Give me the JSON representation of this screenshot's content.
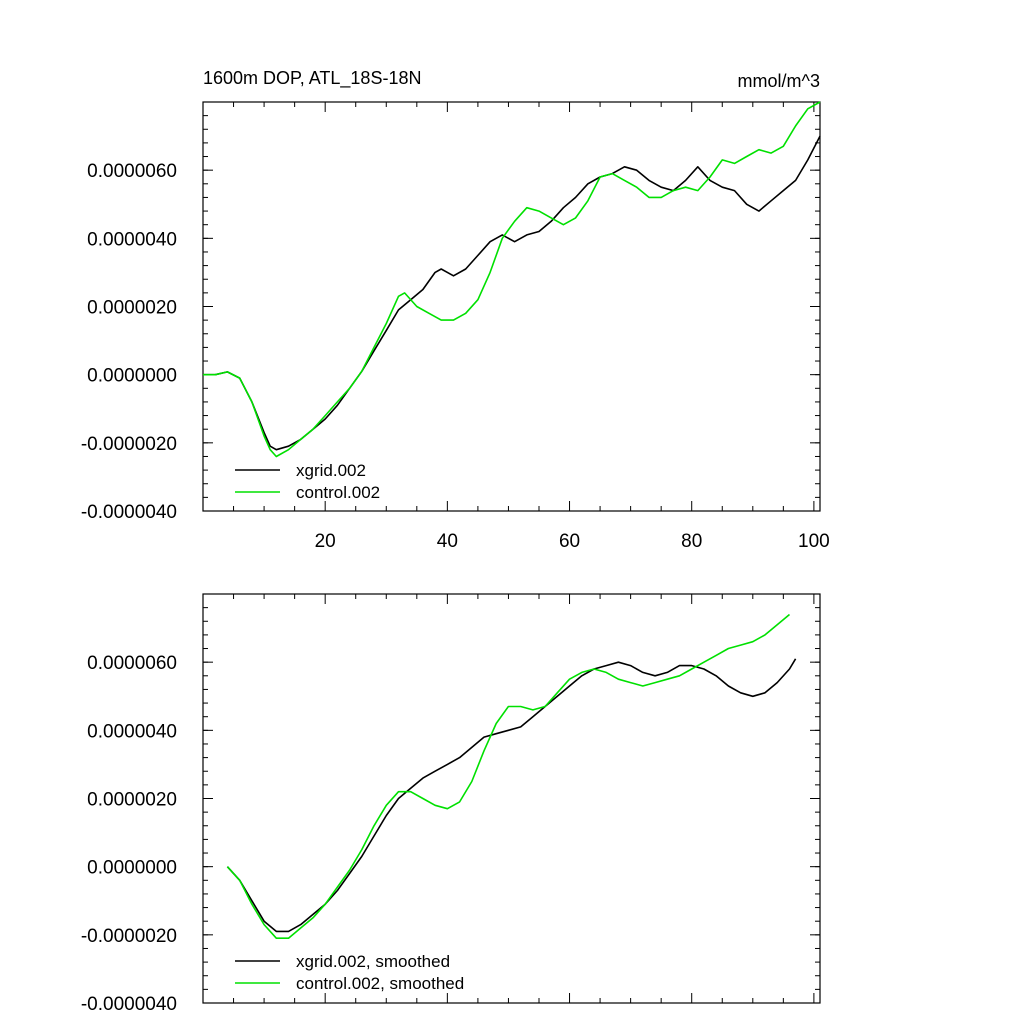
{
  "chart_data": [
    {
      "type": "line",
      "title_left": "1600m DOP, ATL_18S-18N",
      "title_right": "mmol/m^3",
      "xlabel": "",
      "ylabel": "",
      "xlim": [
        0,
        101
      ],
      "ylim": [
        -4e-06,
        8e-06
      ],
      "x_ticks": [
        20,
        40,
        60,
        80,
        100
      ],
      "x_tick_labels": [
        "20",
        "40",
        "60",
        "80",
        "100"
      ],
      "y_ticks": [
        -4e-06,
        -2e-06,
        0.0,
        2e-06,
        4e-06,
        6e-06
      ],
      "y_tick_labels": [
        "-0.0000040",
        "-0.0000020",
        "0.0000000",
        "0.0000020",
        "0.0000040",
        "0.0000060"
      ],
      "legend_position": "bottom-left",
      "series": [
        {
          "name": "xgrid.002",
          "color": "#000000",
          "points": [
            [
              0,
              0
            ],
            [
              2,
              0
            ],
            [
              4,
              8e-08
            ],
            [
              6,
              -1e-07
            ],
            [
              8,
              -8e-07
            ],
            [
              10,
              -1.7e-06
            ],
            [
              11,
              -2.1e-06
            ],
            [
              12,
              -2.2e-06
            ],
            [
              14,
              -2.1e-06
            ],
            [
              16,
              -1.9e-06
            ],
            [
              18,
              -1.6e-06
            ],
            [
              20,
              -1.3e-06
            ],
            [
              22,
              -9e-07
            ],
            [
              24,
              -4e-07
            ],
            [
              26,
              1e-07
            ],
            [
              28,
              7e-07
            ],
            [
              30,
              1.3e-06
            ],
            [
              32,
              1.9e-06
            ],
            [
              34,
              2.2e-06
            ],
            [
              36,
              2.5e-06
            ],
            [
              38,
              3e-06
            ],
            [
              39,
              3.1e-06
            ],
            [
              40,
              3e-06
            ],
            [
              41,
              2.9e-06
            ],
            [
              43,
              3.1e-06
            ],
            [
              45,
              3.5e-06
            ],
            [
              47,
              3.9e-06
            ],
            [
              49,
              4.1e-06
            ],
            [
              51,
              3.9e-06
            ],
            [
              53,
              4.1e-06
            ],
            [
              55,
              4.2e-06
            ],
            [
              57,
              4.5e-06
            ],
            [
              59,
              4.9e-06
            ],
            [
              61,
              5.2e-06
            ],
            [
              63,
              5.6e-06
            ],
            [
              65,
              5.8e-06
            ],
            [
              67,
              5.9e-06
            ],
            [
              69,
              6.1e-06
            ],
            [
              71,
              6e-06
            ],
            [
              73,
              5.7e-06
            ],
            [
              75,
              5.5e-06
            ],
            [
              77,
              5.4e-06
            ],
            [
              79,
              5.7e-06
            ],
            [
              81,
              6.1e-06
            ],
            [
              83,
              5.7e-06
            ],
            [
              85,
              5.5e-06
            ],
            [
              87,
              5.4e-06
            ],
            [
              89,
              5e-06
            ],
            [
              91,
              4.8e-06
            ],
            [
              93,
              5.1e-06
            ],
            [
              95,
              5.4e-06
            ],
            [
              97,
              5.7e-06
            ],
            [
              99,
              6.3e-06
            ],
            [
              101,
              7e-06
            ]
          ]
        },
        {
          "name": "control.002",
          "color": "#00e000",
          "points": [
            [
              0,
              0
            ],
            [
              2,
              0
            ],
            [
              4,
              8e-08
            ],
            [
              6,
              -1e-07
            ],
            [
              8,
              -8e-07
            ],
            [
              10,
              -1.8e-06
            ],
            [
              11,
              -2.2e-06
            ],
            [
              12,
              -2.4e-06
            ],
            [
              14,
              -2.2e-06
            ],
            [
              16,
              -1.9e-06
            ],
            [
              18,
              -1.6e-06
            ],
            [
              20,
              -1.2e-06
            ],
            [
              22,
              -8e-07
            ],
            [
              24,
              -4e-07
            ],
            [
              26,
              1e-07
            ],
            [
              28,
              8e-07
            ],
            [
              30,
              1.5e-06
            ],
            [
              32,
              2.3e-06
            ],
            [
              33,
              2.4e-06
            ],
            [
              35,
              2e-06
            ],
            [
              37,
              1.8e-06
            ],
            [
              39,
              1.6e-06
            ],
            [
              41,
              1.6e-06
            ],
            [
              43,
              1.8e-06
            ],
            [
              45,
              2.2e-06
            ],
            [
              47,
              3e-06
            ],
            [
              49,
              4e-06
            ],
            [
              51,
              4.5e-06
            ],
            [
              53,
              4.9e-06
            ],
            [
              55,
              4.8e-06
            ],
            [
              57,
              4.6e-06
            ],
            [
              59,
              4.4e-06
            ],
            [
              61,
              4.6e-06
            ],
            [
              63,
              5.1e-06
            ],
            [
              65,
              5.8e-06
            ],
            [
              67,
              5.9e-06
            ],
            [
              69,
              5.7e-06
            ],
            [
              71,
              5.5e-06
            ],
            [
              73,
              5.2e-06
            ],
            [
              75,
              5.2e-06
            ],
            [
              77,
              5.4e-06
            ],
            [
              79,
              5.5e-06
            ],
            [
              81,
              5.4e-06
            ],
            [
              83,
              5.8e-06
            ],
            [
              85,
              6.3e-06
            ],
            [
              87,
              6.2e-06
            ],
            [
              89,
              6.4e-06
            ],
            [
              91,
              6.6e-06
            ],
            [
              93,
              6.5e-06
            ],
            [
              95,
              6.7e-06
            ],
            [
              97,
              7.3e-06
            ],
            [
              99,
              7.8e-06
            ],
            [
              101,
              8e-06
            ]
          ]
        }
      ]
    },
    {
      "type": "line",
      "title_left": "",
      "title_right": "",
      "xlabel": "",
      "ylabel": "",
      "xlim": [
        0,
        101
      ],
      "ylim": [
        -4e-06,
        8e-06
      ],
      "x_ticks": [
        20,
        40,
        60,
        80,
        100
      ],
      "x_tick_labels": [],
      "y_ticks": [
        -4e-06,
        -2e-06,
        0.0,
        2e-06,
        4e-06,
        6e-06
      ],
      "y_tick_labels": [
        "-0.0000040",
        "-0.0000020",
        "0.0000000",
        "0.0000020",
        "0.0000040",
        "0.0000060"
      ],
      "legend_position": "bottom-left",
      "series": [
        {
          "name": "xgrid.002, smoothed",
          "color": "#000000",
          "points": [
            [
              4,
              0
            ],
            [
              6,
              -4e-07
            ],
            [
              8,
              -1e-06
            ],
            [
              10,
              -1.6e-06
            ],
            [
              12,
              -1.9e-06
            ],
            [
              14,
              -1.9e-06
            ],
            [
              16,
              -1.7e-06
            ],
            [
              18,
              -1.4e-06
            ],
            [
              20,
              -1.1e-06
            ],
            [
              22,
              -7e-07
            ],
            [
              24,
              -2e-07
            ],
            [
              26,
              3e-07
            ],
            [
              28,
              9e-07
            ],
            [
              30,
              1.5e-06
            ],
            [
              32,
              2e-06
            ],
            [
              34,
              2.3e-06
            ],
            [
              36,
              2.6e-06
            ],
            [
              38,
              2.8e-06
            ],
            [
              40,
              3e-06
            ],
            [
              42,
              3.2e-06
            ],
            [
              44,
              3.5e-06
            ],
            [
              46,
              3.8e-06
            ],
            [
              48,
              3.9e-06
            ],
            [
              50,
              4e-06
            ],
            [
              52,
              4.1e-06
            ],
            [
              54,
              4.4e-06
            ],
            [
              56,
              4.7e-06
            ],
            [
              58,
              5e-06
            ],
            [
              60,
              5.3e-06
            ],
            [
              62,
              5.6e-06
            ],
            [
              64,
              5.8e-06
            ],
            [
              66,
              5.9e-06
            ],
            [
              68,
              6e-06
            ],
            [
              70,
              5.9e-06
            ],
            [
              72,
              5.7e-06
            ],
            [
              74,
              5.6e-06
            ],
            [
              76,
              5.7e-06
            ],
            [
              78,
              5.9e-06
            ],
            [
              80,
              5.9e-06
            ],
            [
              82,
              5.8e-06
            ],
            [
              84,
              5.6e-06
            ],
            [
              86,
              5.3e-06
            ],
            [
              88,
              5.1e-06
            ],
            [
              90,
              5e-06
            ],
            [
              92,
              5.1e-06
            ],
            [
              94,
              5.4e-06
            ],
            [
              96,
              5.8e-06
            ],
            [
              97,
              6.1e-06
            ]
          ]
        },
        {
          "name": "control.002, smoothed",
          "color": "#00e000",
          "points": [
            [
              4,
              0
            ],
            [
              6,
              -4e-07
            ],
            [
              8,
              -1.1e-06
            ],
            [
              10,
              -1.7e-06
            ],
            [
              12,
              -2.1e-06
            ],
            [
              14,
              -2.1e-06
            ],
            [
              16,
              -1.8e-06
            ],
            [
              18,
              -1.5e-06
            ],
            [
              20,
              -1.1e-06
            ],
            [
              22,
              -6e-07
            ],
            [
              24,
              -1e-07
            ],
            [
              26,
              5e-07
            ],
            [
              28,
              1.2e-06
            ],
            [
              30,
              1.8e-06
            ],
            [
              32,
              2.2e-06
            ],
            [
              34,
              2.2e-06
            ],
            [
              36,
              2e-06
            ],
            [
              38,
              1.8e-06
            ],
            [
              40,
              1.7e-06
            ],
            [
              42,
              1.9e-06
            ],
            [
              44,
              2.5e-06
            ],
            [
              46,
              3.4e-06
            ],
            [
              48,
              4.2e-06
            ],
            [
              50,
              4.7e-06
            ],
            [
              52,
              4.7e-06
            ],
            [
              54,
              4.6e-06
            ],
            [
              56,
              4.7e-06
            ],
            [
              58,
              5.1e-06
            ],
            [
              60,
              5.5e-06
            ],
            [
              62,
              5.7e-06
            ],
            [
              64,
              5.8e-06
            ],
            [
              66,
              5.7e-06
            ],
            [
              68,
              5.5e-06
            ],
            [
              70,
              5.4e-06
            ],
            [
              72,
              5.3e-06
            ],
            [
              74,
              5.4e-06
            ],
            [
              76,
              5.5e-06
            ],
            [
              78,
              5.6e-06
            ],
            [
              80,
              5.8e-06
            ],
            [
              82,
              6e-06
            ],
            [
              84,
              6.2e-06
            ],
            [
              86,
              6.4e-06
            ],
            [
              88,
              6.5e-06
            ],
            [
              90,
              6.6e-06
            ],
            [
              92,
              6.8e-06
            ],
            [
              94,
              7.1e-06
            ],
            [
              96,
              7.4e-06
            ]
          ]
        }
      ]
    }
  ]
}
